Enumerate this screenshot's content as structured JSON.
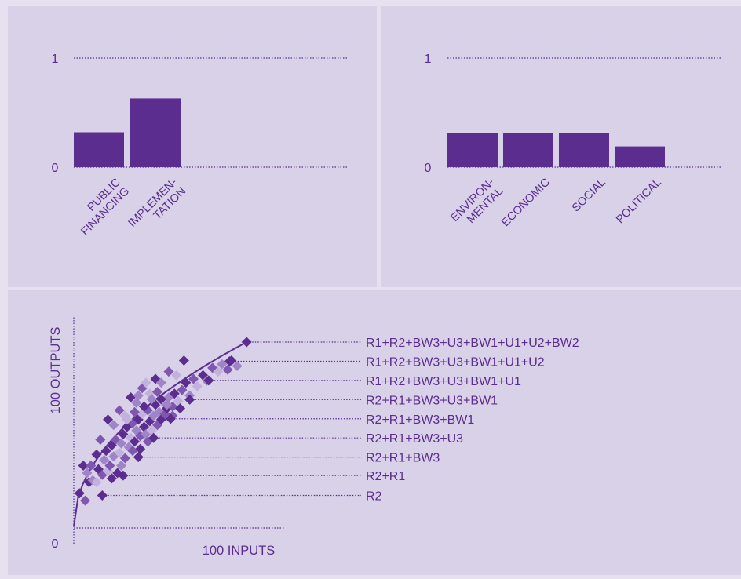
{
  "colors": {
    "background": "#e6e0f0",
    "panel": "#d8d1e8",
    "purple": "#5b2d8e",
    "point_shades": [
      "#5b2d8e",
      "#7e57b0",
      "#9f84c8",
      "#c2b1dd"
    ]
  },
  "chart_data": [
    {
      "type": "bar",
      "categories": [
        [
          "PUBLIC",
          "FINANCING"
        ],
        [
          "IMPLEMEN-",
          "TATION"
        ]
      ],
      "values": [
        0.32,
        0.63
      ],
      "ylim": [
        0,
        1
      ],
      "yticks": [
        "0",
        "1"
      ],
      "grid": "dotted"
    },
    {
      "type": "bar",
      "categories": [
        [
          "ENVIRON-",
          "MENTAL"
        ],
        [
          "ECONOMIC"
        ],
        [
          "SOCIAL"
        ],
        [
          "POLITICAL"
        ]
      ],
      "values": [
        0.31,
        0.31,
        0.31,
        0.19
      ],
      "ylim": [
        0,
        1
      ],
      "yticks": [
        "0",
        "1"
      ],
      "grid": "dotted"
    },
    {
      "type": "scatter",
      "xlabel": "100 INPUTS",
      "ylabel": "100 OUTPUTS",
      "origin_label": "0",
      "xlim": [
        0,
        100
      ],
      "ylim": [
        0,
        100
      ],
      "frontier": true,
      "frontier_labels": [
        {
          "label": "R1+R2+BW3+U3+BW1+U1+U2+BW2",
          "x": 91,
          "y": 100
        },
        {
          "label": "R1+R2+BW3+U3+BW1+U1+U2",
          "x": 82,
          "y": 89.6
        },
        {
          "label": "R1+R2+BW3+U3+BW1+U1",
          "x": 71,
          "y": 79.2
        },
        {
          "label": "R2+R1+BW3+U3+BW1",
          "x": 61,
          "y": 68.8
        },
        {
          "label": "R2+R1+BW3+BW1",
          "x": 51,
          "y": 58.4
        },
        {
          "label": "R2+R1+BW3+U3",
          "x": 42,
          "y": 48
        },
        {
          "label": "R2+R1+BW3",
          "x": 34,
          "y": 37.6
        },
        {
          "label": "R2+R1",
          "x": 26,
          "y": 27.6
        },
        {
          "label": "R2",
          "x": 15,
          "y": 16.8
        }
      ],
      "points": [
        [
          3,
          18,
          0
        ],
        [
          6,
          14,
          1
        ],
        [
          5,
          33,
          0
        ],
        [
          7,
          29,
          2
        ],
        [
          9,
          33,
          1
        ],
        [
          8,
          24,
          0
        ],
        [
          10,
          25,
          2
        ],
        [
          12,
          24,
          3
        ],
        [
          13,
          31,
          0
        ],
        [
          15,
          28,
          1
        ],
        [
          16,
          36,
          2
        ],
        [
          17,
          41,
          0
        ],
        [
          18,
          30,
          3
        ],
        [
          19,
          33,
          1
        ],
        [
          20,
          44,
          0
        ],
        [
          21,
          38,
          2
        ],
        [
          22,
          47,
          1
        ],
        [
          23,
          29,
          0
        ],
        [
          24,
          40,
          3
        ],
        [
          25,
          45,
          2
        ],
        [
          26,
          50,
          0
        ],
        [
          27,
          37,
          1
        ],
        [
          28,
          54,
          0
        ],
        [
          29,
          43,
          2
        ],
        [
          30,
          48,
          3
        ],
        [
          31,
          56,
          1
        ],
        [
          32,
          46,
          0
        ],
        [
          33,
          52,
          2
        ],
        [
          34,
          58,
          0
        ],
        [
          35,
          49,
          1
        ],
        [
          36,
          61,
          3
        ],
        [
          37,
          54,
          0
        ],
        [
          38,
          50,
          2
        ],
        [
          39,
          63,
          1
        ],
        [
          40,
          57,
          0
        ],
        [
          41,
          52,
          3
        ],
        [
          42,
          60,
          2
        ],
        [
          43,
          66,
          0
        ],
        [
          44,
          55,
          1
        ],
        [
          45,
          62,
          2
        ],
        [
          46,
          58,
          0
        ],
        [
          47,
          67,
          3
        ],
        [
          48,
          61,
          1
        ],
        [
          49,
          64,
          0
        ],
        [
          50,
          70,
          2
        ],
        [
          52,
          65,
          1
        ],
        [
          53,
          72,
          0
        ],
        [
          55,
          68,
          3
        ],
        [
          57,
          74,
          1
        ],
        [
          59,
          78,
          0
        ],
        [
          61,
          71,
          2
        ],
        [
          63,
          80,
          1
        ],
        [
          65,
          76,
          3
        ],
        [
          68,
          82,
          0
        ],
        [
          70,
          79,
          2
        ],
        [
          73,
          86,
          1
        ],
        [
          76,
          84,
          3
        ],
        [
          78,
          88,
          2
        ],
        [
          81,
          85,
          1
        ],
        [
          83,
          90,
          0
        ],
        [
          86,
          87,
          2
        ],
        [
          12,
          39,
          0
        ],
        [
          14,
          47,
          1
        ],
        [
          18,
          58,
          0
        ],
        [
          21,
          55,
          2
        ],
        [
          24,
          63,
          1
        ],
        [
          27,
          60,
          3
        ],
        [
          30,
          70,
          0
        ],
        [
          33,
          67,
          2
        ],
        [
          36,
          75,
          1
        ],
        [
          40,
          72,
          3
        ],
        [
          43,
          80,
          0
        ],
        [
          46,
          78,
          2
        ],
        [
          50,
          84,
          1
        ],
        [
          54,
          82,
          3
        ],
        [
          58,
          90,
          0
        ],
        [
          32,
          62,
          1
        ],
        [
          37,
          65,
          0
        ],
        [
          41,
          69,
          2
        ],
        [
          44,
          73,
          1
        ],
        [
          35,
          42,
          0
        ],
        [
          39,
          46,
          1
        ],
        [
          25,
          33,
          2
        ],
        [
          20,
          26,
          0
        ],
        [
          28,
          58,
          3
        ],
        [
          31,
          41,
          1
        ],
        [
          46,
          69,
          0
        ],
        [
          49,
          66,
          2
        ],
        [
          52,
          60,
          1
        ],
        [
          56,
          64,
          0
        ],
        [
          34,
          71,
          2
        ],
        [
          38,
          78,
          3
        ]
      ]
    }
  ]
}
